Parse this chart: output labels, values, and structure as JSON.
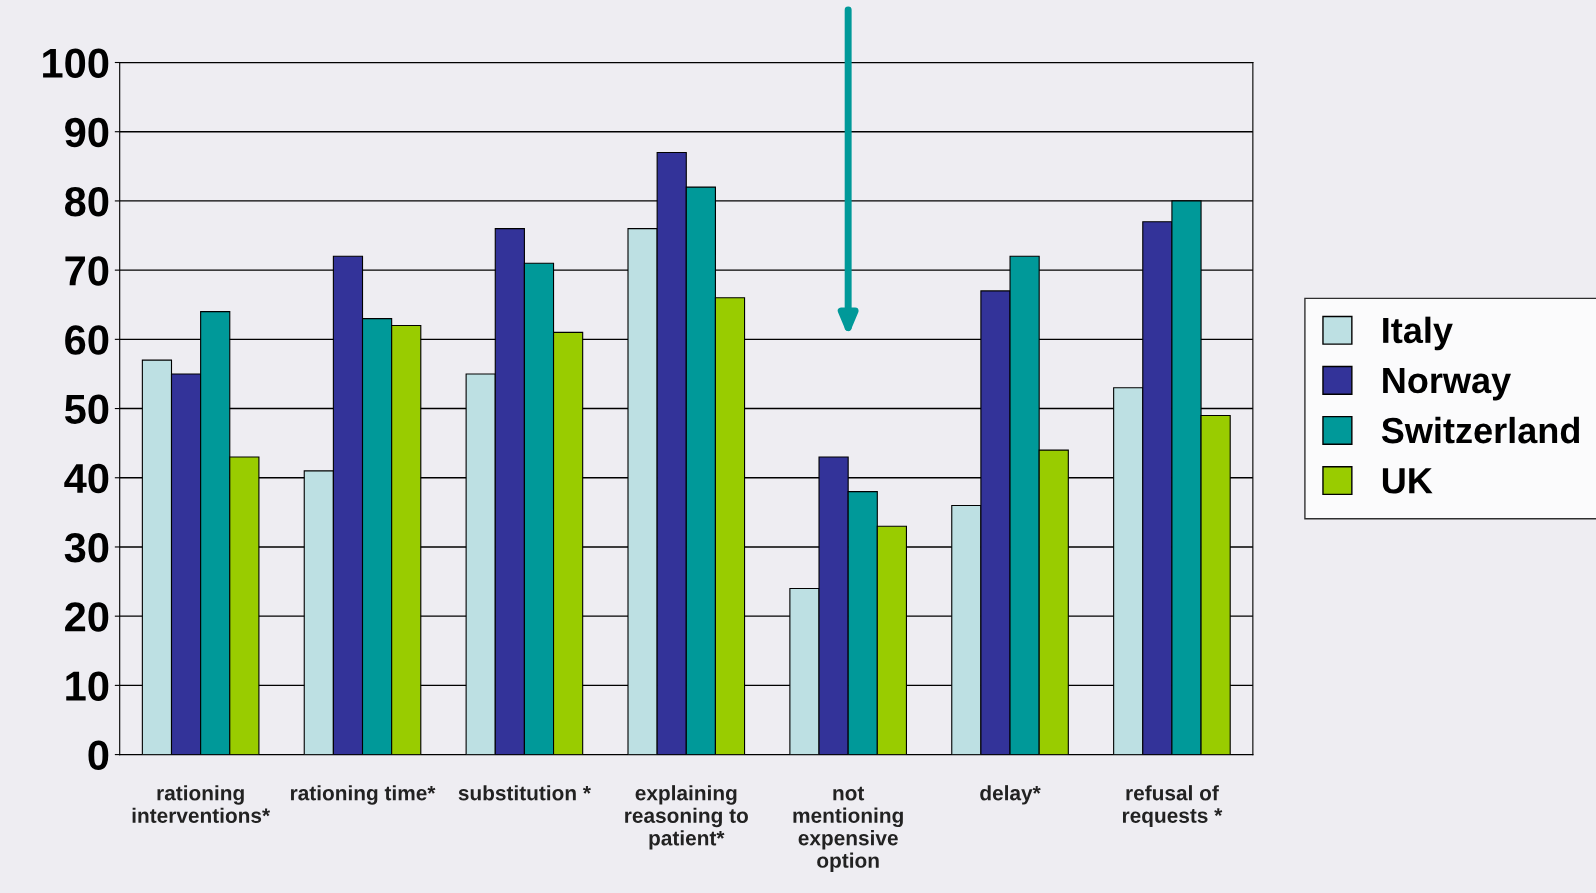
{
  "chart_data": {
    "type": "bar",
    "categories": [
      "rationing\ninterventions*",
      "rationing time*",
      "substitution *",
      "explaining\nreasoning to\npatient*",
      "not\nmentioning\nexpensive\noption",
      "delay*",
      "refusal of\nrequests *"
    ],
    "series": [
      {
        "name": "Italy",
        "color": "#bde0e3",
        "values": [
          57,
          41,
          55,
          76,
          24,
          36,
          53
        ]
      },
      {
        "name": "Norway",
        "color": "#333399",
        "values": [
          55,
          72,
          76,
          87,
          43,
          67,
          77
        ]
      },
      {
        "name": "Switzerland",
        "color": "#009999",
        "values": [
          64,
          63,
          71,
          82,
          38,
          72,
          80
        ]
      },
      {
        "name": "UK",
        "color": "#99cc00",
        "values": [
          43,
          62,
          61,
          66,
          33,
          44,
          49
        ]
      }
    ],
    "ylim": [
      0,
      100
    ],
    "yticks": [
      0,
      10,
      20,
      30,
      40,
      50,
      60,
      70,
      80,
      90,
      100
    ],
    "grid": "y",
    "legend": "right"
  }
}
